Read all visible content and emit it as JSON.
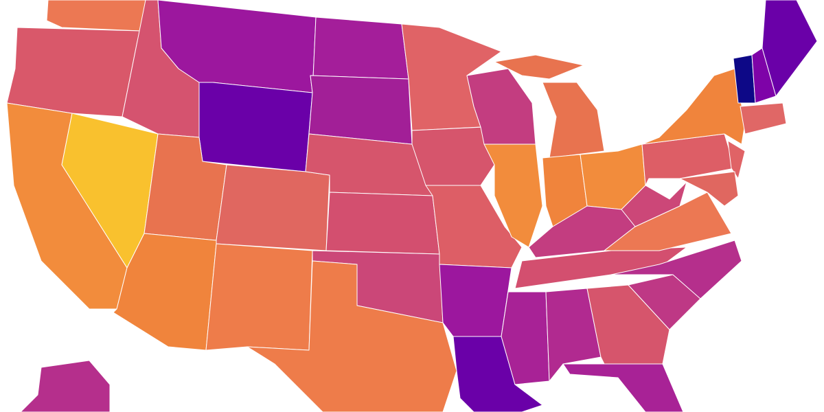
{
  "map": {
    "region_colors": [
      "#ec7853",
      "#d9586a",
      "#f28c3c",
      "#f9c12e",
      "#d5536f",
      "#9c179e",
      "#6a00a8",
      "#e8734f",
      "#e06760",
      "#f0843c",
      "#ee7c4a",
      "#a41e9a",
      "#a21f97",
      "#d6556c",
      "#d34f6f",
      "#cb4778",
      "#ee7c4a",
      "#e06366",
      "#d6556c",
      "#dd5e66",
      "#9c179e",
      "#6a00a8",
      "#c33d80",
      "#f28c3c",
      "#e8734f",
      "#e8734f",
      "#f0843c",
      "#f28c3c",
      "#c33d80",
      "#d34f6f",
      "#a82296",
      "#b12a90",
      "#d6556c",
      "#a82296",
      "#be3885",
      "#b52f8c",
      "#ec7853",
      "#cc4778",
      "#dd5e66",
      "#f0843c",
      "#e06366",
      "#e06760",
      "#0d0887",
      "#7e03a8",
      "#6a00a8",
      "#e06766",
      "#b52f8c"
    ]
  }
}
